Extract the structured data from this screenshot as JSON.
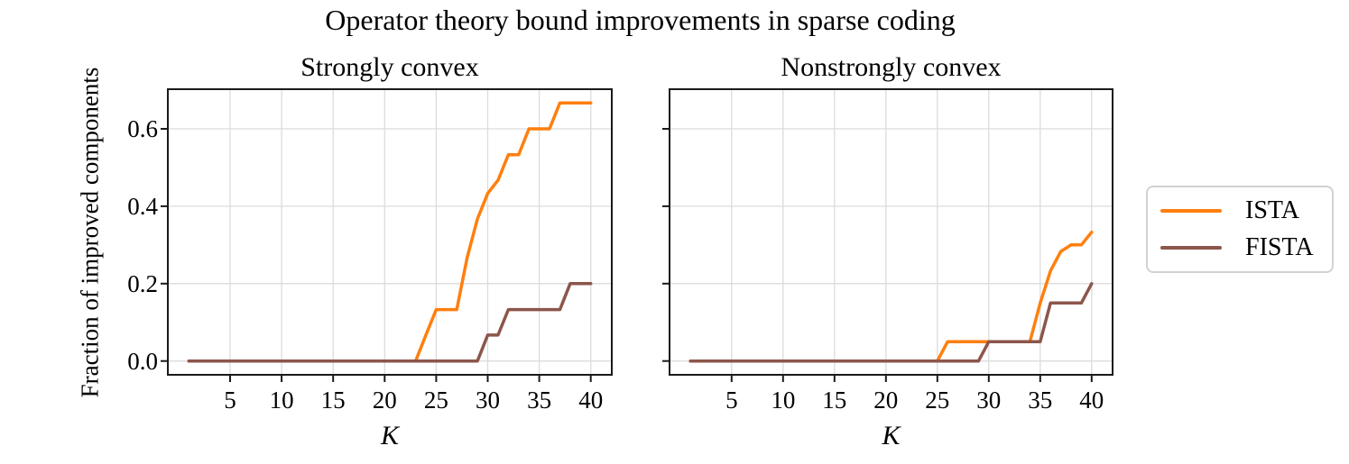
{
  "figure": {
    "title": "Operator theory bound improvements in sparse coding",
    "ylabel": "Fraction of improved components",
    "background": "#ffffff",
    "text_color": "#000000",
    "grid_color": "#dcdcdc",
    "spine_color": "#1a1a1a"
  },
  "legend": {
    "entries": [
      {
        "label": "ISTA",
        "color": "#ff7f0e"
      },
      {
        "label": "FISTA",
        "color": "#8c564b"
      }
    ]
  },
  "chart_data": [
    {
      "type": "line",
      "title": "Strongly convex",
      "xlabel": "K",
      "ylabel": "Fraction of improved components",
      "grid": true,
      "show_ytick_labels": true,
      "xticks": [
        5,
        10,
        15,
        20,
        25,
        30,
        35,
        40
      ],
      "xtick_labels": [
        "5",
        "10",
        "15",
        "20",
        "25",
        "30",
        "35",
        "40"
      ],
      "yticks": [
        0.0,
        0.2,
        0.4,
        0.6
      ],
      "ytick_labels": [
        "0.0",
        "0.2",
        "0.4",
        "0.6"
      ],
      "xlim": [
        -0.95,
        41.95
      ],
      "ylim": [
        -0.0333,
        0.7
      ],
      "x": [
        1,
        2,
        3,
        4,
        5,
        6,
        7,
        8,
        9,
        10,
        11,
        12,
        13,
        14,
        15,
        16,
        17,
        18,
        19,
        20,
        21,
        22,
        23,
        24,
        25,
        26,
        27,
        28,
        29,
        30,
        31,
        32,
        33,
        34,
        35,
        36,
        37,
        38,
        39,
        40
      ],
      "series": [
        {
          "name": "ISTA",
          "color": "#ff7f0e",
          "values": [
            0,
            0,
            0,
            0,
            0,
            0,
            0,
            0,
            0,
            0,
            0,
            0,
            0,
            0,
            0,
            0,
            0,
            0,
            0,
            0,
            0,
            0,
            0,
            0.067,
            0.133,
            0.133,
            0.133,
            0.267,
            0.367,
            0.433,
            0.467,
            0.533,
            0.533,
            0.6,
            0.6,
            0.6,
            0.667,
            0.667,
            0.667,
            0.667
          ]
        },
        {
          "name": "FISTA",
          "color": "#8c564b",
          "values": [
            0,
            0,
            0,
            0,
            0,
            0,
            0,
            0,
            0,
            0,
            0,
            0,
            0,
            0,
            0,
            0,
            0,
            0,
            0,
            0,
            0,
            0,
            0,
            0,
            0,
            0,
            0,
            0,
            0,
            0.067,
            0.067,
            0.133,
            0.133,
            0.133,
            0.133,
            0.133,
            0.133,
            0.2,
            0.2,
            0.2
          ]
        }
      ]
    },
    {
      "type": "line",
      "title": "Nonstrongly convex",
      "xlabel": "K",
      "ylabel": "Fraction of improved components",
      "grid": true,
      "show_ytick_labels": false,
      "xticks": [
        5,
        10,
        15,
        20,
        25,
        30,
        35,
        40
      ],
      "xtick_labels": [
        "5",
        "10",
        "15",
        "20",
        "25",
        "30",
        "35",
        "40"
      ],
      "yticks": [
        0.0,
        0.2,
        0.4,
        0.6
      ],
      "ytick_labels": [
        "0.0",
        "0.2",
        "0.4",
        "0.6"
      ],
      "xlim": [
        -0.95,
        41.95
      ],
      "ylim": [
        -0.0333,
        0.7
      ],
      "x": [
        1,
        2,
        3,
        4,
        5,
        6,
        7,
        8,
        9,
        10,
        11,
        12,
        13,
        14,
        15,
        16,
        17,
        18,
        19,
        20,
        21,
        22,
        23,
        24,
        25,
        26,
        27,
        28,
        29,
        30,
        31,
        32,
        33,
        34,
        35,
        36,
        37,
        38,
        39,
        40
      ],
      "series": [
        {
          "name": "ISTA",
          "color": "#ff7f0e",
          "values": [
            0,
            0,
            0,
            0,
            0,
            0,
            0,
            0,
            0,
            0,
            0,
            0,
            0,
            0,
            0,
            0,
            0,
            0,
            0,
            0,
            0,
            0,
            0,
            0,
            0,
            0.05,
            0.05,
            0.05,
            0.05,
            0.05,
            0.05,
            0.05,
            0.05,
            0.05,
            0.15,
            0.233,
            0.283,
            0.3,
            0.3,
            0.333
          ]
        },
        {
          "name": "FISTA",
          "color": "#8c564b",
          "values": [
            0,
            0,
            0,
            0,
            0,
            0,
            0,
            0,
            0,
            0,
            0,
            0,
            0,
            0,
            0,
            0,
            0,
            0,
            0,
            0,
            0,
            0,
            0,
            0,
            0,
            0,
            0,
            0,
            0,
            0.05,
            0.05,
            0.05,
            0.05,
            0.05,
            0.05,
            0.15,
            0.15,
            0.15,
            0.15,
            0.2
          ]
        }
      ]
    }
  ]
}
